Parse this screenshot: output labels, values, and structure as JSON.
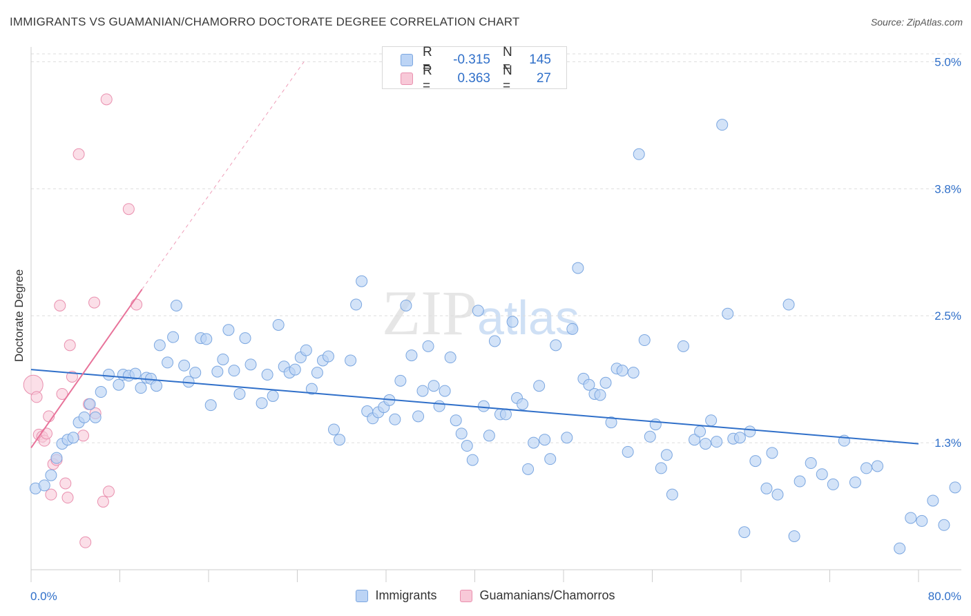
{
  "title": "IMMIGRANTS VS GUAMANIAN/CHAMORRO DOCTORATE DEGREE CORRELATION CHART",
  "source": "Source: ZipAtlas.com",
  "watermark": {
    "zip": "ZIP",
    "atlas": "atlas"
  },
  "colors": {
    "blue": "#2f6fc9",
    "blue_fill": "#bcd4f5",
    "pink": "#e8739a",
    "pink_fill": "#f8c9d8",
    "grid": "#dddddd"
  },
  "legend_box": {
    "rows": [
      {
        "r_label": "R =",
        "r_value": "-0.315",
        "n_label": "N =",
        "n_value": "145"
      },
      {
        "r_label": "R =",
        "r_value": "0.363",
        "n_label": "N =",
        "n_value": "27"
      }
    ]
  },
  "legend_bottom": [
    {
      "label": "Immigrants"
    },
    {
      "label": "Guamanians/Chamorros"
    }
  ],
  "chart_data": {
    "type": "scatter",
    "title": "IMMIGRANTS VS GUAMANIAN/CHAMORRO DOCTORATE DEGREE CORRELATION CHART",
    "xlabel": "",
    "ylabel": "Doctorate Degree",
    "xlim": [
      0,
      80
    ],
    "ylim": [
      0,
      5.2
    ],
    "x_tick_labels": [
      "0.0%",
      "80.0%"
    ],
    "y_ticks": [
      1.25,
      2.5,
      3.75,
      5.0
    ],
    "y_tick_labels": [
      "1.3%",
      "2.5%",
      "3.8%",
      "5.0%"
    ],
    "series": [
      {
        "name": "Immigrants",
        "r": -0.315,
        "n": 145,
        "trend": {
          "x0": 0,
          "y0": 1.97,
          "x1": 80,
          "y1": 1.24
        },
        "points": [
          [
            0.4,
            0.8
          ],
          [
            1.2,
            0.83
          ],
          [
            1.8,
            0.93
          ],
          [
            2.3,
            1.1
          ],
          [
            2.8,
            1.24
          ],
          [
            3.3,
            1.28
          ],
          [
            3.8,
            1.3
          ],
          [
            4.3,
            1.45
          ],
          [
            4.8,
            1.5
          ],
          [
            5.3,
            1.63
          ],
          [
            5.8,
            1.5
          ],
          [
            6.3,
            1.75
          ],
          [
            7.0,
            1.92
          ],
          [
            7.9,
            1.82
          ],
          [
            8.3,
            1.92
          ],
          [
            8.8,
            1.91
          ],
          [
            9.4,
            1.93
          ],
          [
            9.9,
            1.79
          ],
          [
            10.4,
            1.89
          ],
          [
            10.8,
            1.88
          ],
          [
            11.3,
            1.81
          ],
          [
            11.6,
            2.21
          ],
          [
            12.3,
            2.04
          ],
          [
            12.8,
            2.29
          ],
          [
            13.1,
            2.6
          ],
          [
            13.8,
            2.01
          ],
          [
            14.2,
            1.85
          ],
          [
            14.8,
            1.94
          ],
          [
            15.3,
            2.28
          ],
          [
            15.8,
            2.27
          ],
          [
            16.2,
            1.62
          ],
          [
            16.8,
            1.95
          ],
          [
            17.3,
            2.07
          ],
          [
            17.8,
            2.36
          ],
          [
            18.3,
            1.96
          ],
          [
            18.8,
            1.73
          ],
          [
            19.3,
            2.28
          ],
          [
            19.8,
            2.02
          ],
          [
            20.8,
            1.64
          ],
          [
            21.3,
            1.92
          ],
          [
            21.8,
            1.71
          ],
          [
            22.3,
            2.41
          ],
          [
            22.8,
            2.0
          ],
          [
            23.3,
            1.94
          ],
          [
            23.8,
            1.97
          ],
          [
            24.3,
            2.09
          ],
          [
            24.8,
            2.16
          ],
          [
            25.3,
            1.78
          ],
          [
            25.8,
            1.94
          ],
          [
            26.3,
            2.06
          ],
          [
            26.8,
            2.1
          ],
          [
            27.3,
            1.38
          ],
          [
            27.8,
            1.28
          ],
          [
            28.8,
            2.06
          ],
          [
            29.3,
            2.61
          ],
          [
            29.8,
            2.84
          ],
          [
            30.3,
            1.56
          ],
          [
            30.8,
            1.49
          ],
          [
            31.3,
            1.55
          ],
          [
            31.8,
            1.6
          ],
          [
            32.3,
            1.67
          ],
          [
            32.8,
            1.48
          ],
          [
            33.3,
            1.86
          ],
          [
            33.8,
            2.6
          ],
          [
            34.3,
            2.11
          ],
          [
            34.9,
            1.51
          ],
          [
            35.3,
            1.76
          ],
          [
            35.8,
            2.2
          ],
          [
            36.3,
            1.81
          ],
          [
            36.8,
            1.61
          ],
          [
            37.3,
            1.76
          ],
          [
            37.8,
            2.09
          ],
          [
            38.3,
            1.47
          ],
          [
            38.8,
            1.34
          ],
          [
            39.3,
            1.22
          ],
          [
            39.8,
            1.08
          ],
          [
            40.3,
            2.55
          ],
          [
            40.8,
            1.61
          ],
          [
            41.3,
            1.32
          ],
          [
            41.8,
            2.25
          ],
          [
            42.3,
            1.53
          ],
          [
            42.8,
            1.53
          ],
          [
            43.4,
            2.44
          ],
          [
            43.8,
            1.69
          ],
          [
            44.3,
            1.63
          ],
          [
            44.8,
            0.99
          ],
          [
            45.3,
            1.25
          ],
          [
            45.8,
            1.81
          ],
          [
            46.3,
            1.28
          ],
          [
            46.8,
            1.09
          ],
          [
            47.3,
            2.21
          ],
          [
            48.3,
            1.3
          ],
          [
            48.8,
            2.37
          ],
          [
            49.3,
            2.97
          ],
          [
            49.8,
            1.88
          ],
          [
            50.3,
            1.82
          ],
          [
            50.8,
            1.73
          ],
          [
            51.3,
            1.72
          ],
          [
            51.8,
            1.84
          ],
          [
            52.3,
            1.45
          ],
          [
            52.8,
            1.98
          ],
          [
            53.3,
            1.96
          ],
          [
            53.8,
            1.16
          ],
          [
            54.3,
            1.94
          ],
          [
            54.8,
            4.09
          ],
          [
            55.3,
            2.26
          ],
          [
            55.8,
            1.31
          ],
          [
            56.3,
            1.43
          ],
          [
            56.8,
            1.0
          ],
          [
            57.3,
            1.13
          ],
          [
            57.8,
            0.74
          ],
          [
            58.8,
            2.2
          ],
          [
            59.8,
            1.28
          ],
          [
            60.3,
            1.36
          ],
          [
            60.8,
            1.24
          ],
          [
            61.3,
            1.47
          ],
          [
            61.8,
            1.26
          ],
          [
            62.3,
            4.38
          ],
          [
            62.8,
            2.52
          ],
          [
            63.3,
            1.29
          ],
          [
            63.9,
            1.3
          ],
          [
            64.3,
            0.37
          ],
          [
            64.8,
            1.36
          ],
          [
            65.3,
            1.07
          ],
          [
            66.3,
            0.8
          ],
          [
            66.8,
            1.15
          ],
          [
            67.3,
            0.74
          ],
          [
            68.3,
            2.61
          ],
          [
            68.8,
            0.33
          ],
          [
            69.3,
            0.87
          ],
          [
            70.3,
            1.05
          ],
          [
            71.3,
            0.94
          ],
          [
            72.3,
            0.84
          ],
          [
            73.3,
            1.27
          ],
          [
            74.3,
            0.86
          ],
          [
            75.3,
            1.0
          ],
          [
            76.3,
            1.02
          ],
          [
            78.3,
            0.21
          ],
          [
            79.3,
            0.51
          ],
          [
            80.3,
            0.48
          ],
          [
            81.3,
            0.68
          ],
          [
            82.3,
            0.44
          ],
          [
            83.3,
            0.81
          ]
        ]
      },
      {
        "name": "Guamanians/Chamorros",
        "r": 0.363,
        "n": 27,
        "trend": {
          "x0": 0,
          "y0": 1.2,
          "x1": 10.0,
          "y1": 2.76
        },
        "trend_dashed_to": {
          "x": 24.6,
          "y": 5.0
        },
        "points": [
          [
            0.2,
            1.82
          ],
          [
            0.5,
            1.7
          ],
          [
            0.7,
            1.33
          ],
          [
            1.0,
            1.31
          ],
          [
            1.2,
            1.27
          ],
          [
            1.4,
            1.34
          ],
          [
            1.6,
            1.51
          ],
          [
            1.8,
            0.74
          ],
          [
            2.0,
            1.04
          ],
          [
            2.3,
            1.08
          ],
          [
            2.6,
            2.6
          ],
          [
            2.8,
            1.73
          ],
          [
            3.1,
            0.85
          ],
          [
            3.3,
            0.71
          ],
          [
            3.5,
            2.21
          ],
          [
            3.7,
            1.9
          ],
          [
            4.3,
            4.09
          ],
          [
            4.7,
            1.32
          ],
          [
            4.9,
            0.27
          ],
          [
            5.2,
            1.63
          ],
          [
            5.7,
            2.63
          ],
          [
            5.8,
            1.54
          ],
          [
            6.5,
            0.67
          ],
          [
            6.8,
            4.63
          ],
          [
            7.0,
            0.77
          ],
          [
            8.8,
            3.55
          ],
          [
            9.5,
            2.61
          ]
        ]
      }
    ]
  }
}
